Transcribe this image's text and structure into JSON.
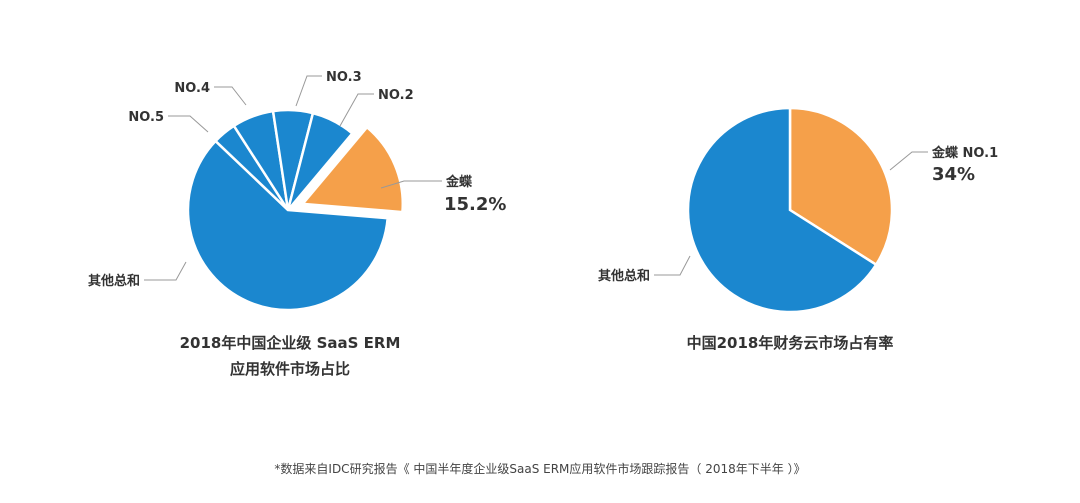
{
  "chart_data": [
    {
      "type": "pie",
      "title_lines": [
        "2018年中国企业级 SaaS ERM",
        "应用软件市场占比"
      ],
      "slices": [
        {
          "label": "金蝶",
          "value_text": "15.2%",
          "value": 15.2,
          "color": "#F5A04A",
          "exploded": true
        },
        {
          "label": "其他总和",
          "value_text": "",
          "value": 60.8,
          "color": "#1B87CF",
          "exploded": false
        },
        {
          "label": "NO.5",
          "value_text": "",
          "value": 3.8,
          "color": "#1B87CF",
          "exploded": false
        },
        {
          "label": "NO.4",
          "value_text": "",
          "value": 6.7,
          "color": "#1B87CF",
          "exploded": false
        },
        {
          "label": "NO.3",
          "value_text": "",
          "value": 6.4,
          "color": "#1B87CF",
          "exploded": false
        },
        {
          "label": "NO.2",
          "value_text": "",
          "value": 7.1,
          "color": "#1B87CF",
          "exploded": false
        }
      ]
    },
    {
      "type": "pie",
      "title_lines": [
        "中国2018年财务云市场占有率"
      ],
      "slices": [
        {
          "label": "金蝶 NO.1",
          "value_text": "34%",
          "value": 34,
          "color": "#F5A04A",
          "exploded": false
        },
        {
          "label": "其他总和",
          "value_text": "",
          "value": 66,
          "color": "#1B87CF",
          "exploded": false
        }
      ]
    }
  ],
  "footnote": "*数据来自IDC研究报告《 中国半年度企业级SaaS ERM应用软件市场跟踪报告（ 2018年下半年 ）》"
}
